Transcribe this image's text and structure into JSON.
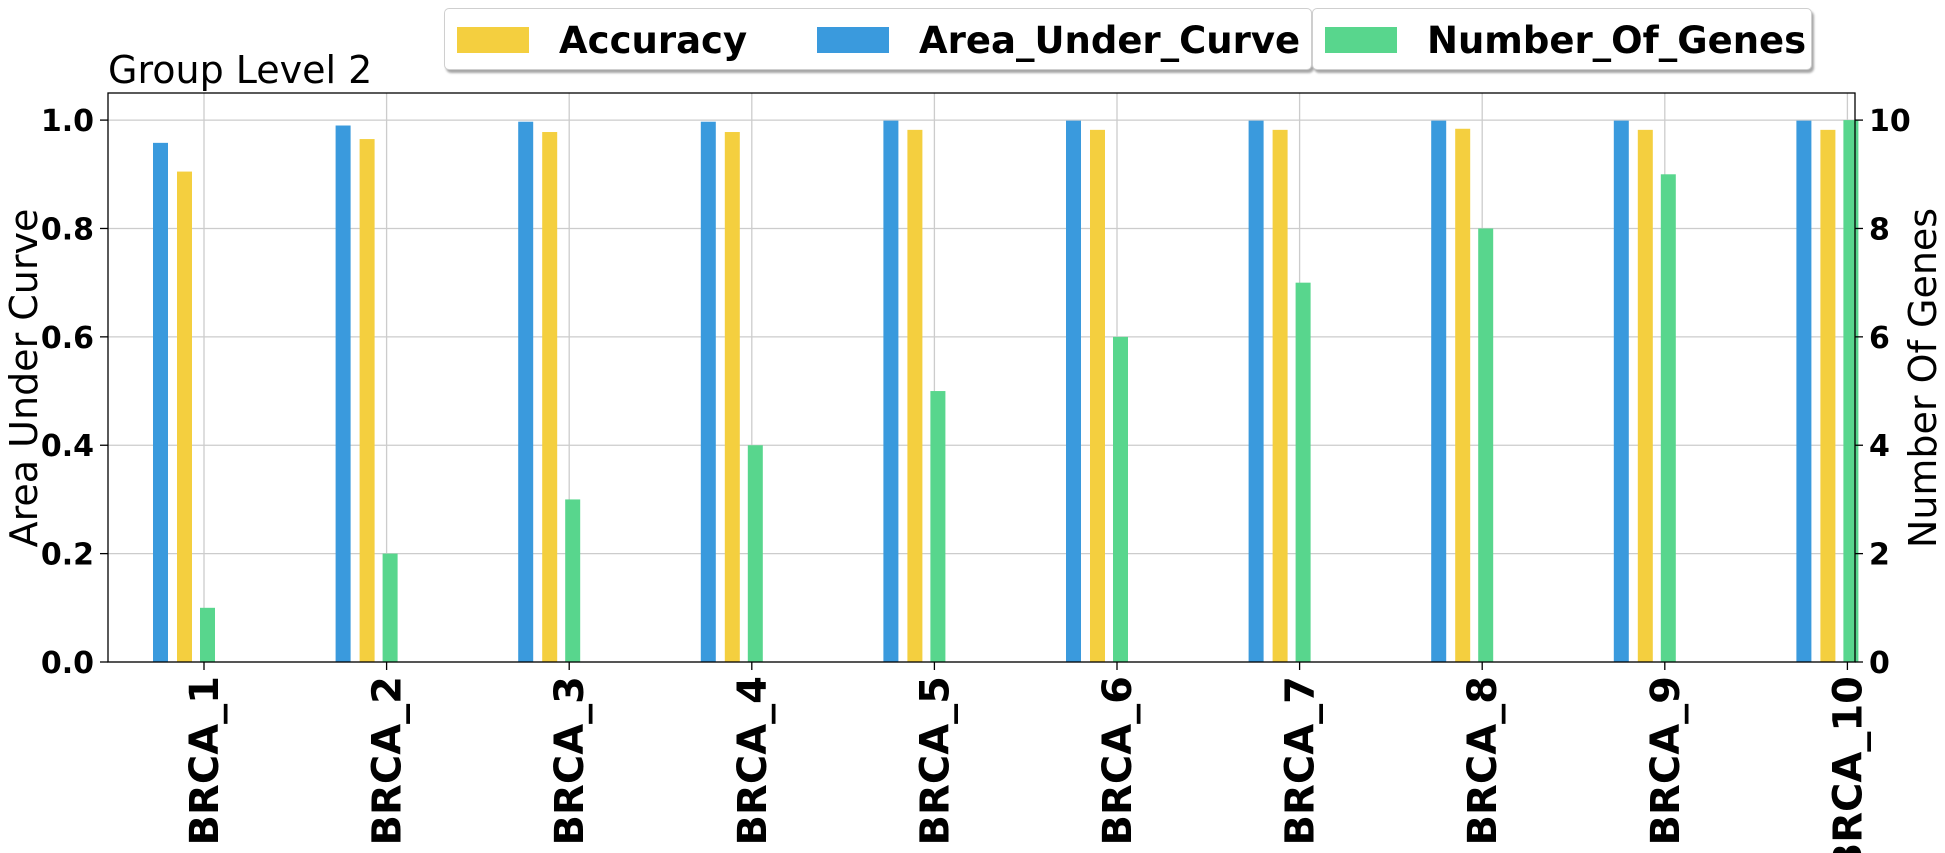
{
  "chart_data": {
    "type": "bar",
    "title": "Group Level 2",
    "xlabel": "",
    "ylabel": "Area Under Curve",
    "y2label": "Number Of Genes",
    "ylim": [
      0,
      1.05
    ],
    "y2lim": [
      0,
      10.5
    ],
    "yticks": [
      "0.0",
      "0.2",
      "0.4",
      "0.6",
      "0.8",
      "1.0"
    ],
    "y2ticks": [
      "0",
      "2",
      "4",
      "6",
      "8",
      "10"
    ],
    "grid": true,
    "legend_position": "top-center",
    "categories": [
      "BRCA_1",
      "BRCA_2",
      "BRCA_3",
      "BRCA_4",
      "BRCA_5",
      "BRCA_6",
      "BRCA_7",
      "BRCA_8",
      "BRCA_9",
      "BRCA_10"
    ],
    "series": [
      {
        "name": "Area_Under_Curve",
        "axis": "left",
        "color": "#3a9add",
        "values": [
          0.958,
          0.99,
          0.997,
          0.997,
          0.999,
          0.999,
          0.999,
          0.999,
          0.999,
          0.999
        ]
      },
      {
        "name": "Accuracy",
        "axis": "left",
        "color": "#f4cf3f",
        "values": [
          0.905,
          0.965,
          0.978,
          0.978,
          0.982,
          0.982,
          0.982,
          0.984,
          0.982,
          0.982
        ]
      },
      {
        "name": "Number_Of_Genes",
        "axis": "right",
        "color": "#58d68d",
        "values": [
          1,
          2,
          3,
          4,
          5,
          6,
          7,
          8,
          9,
          10
        ]
      }
    ]
  },
  "legend": {
    "items": [
      {
        "name": "Accuracy",
        "color": "#f4cf3f"
      },
      {
        "name": "Area_Under_Curve",
        "color": "#3a9add"
      },
      {
        "name": "Number_Of_Genes",
        "color": "#58d68d"
      }
    ]
  }
}
